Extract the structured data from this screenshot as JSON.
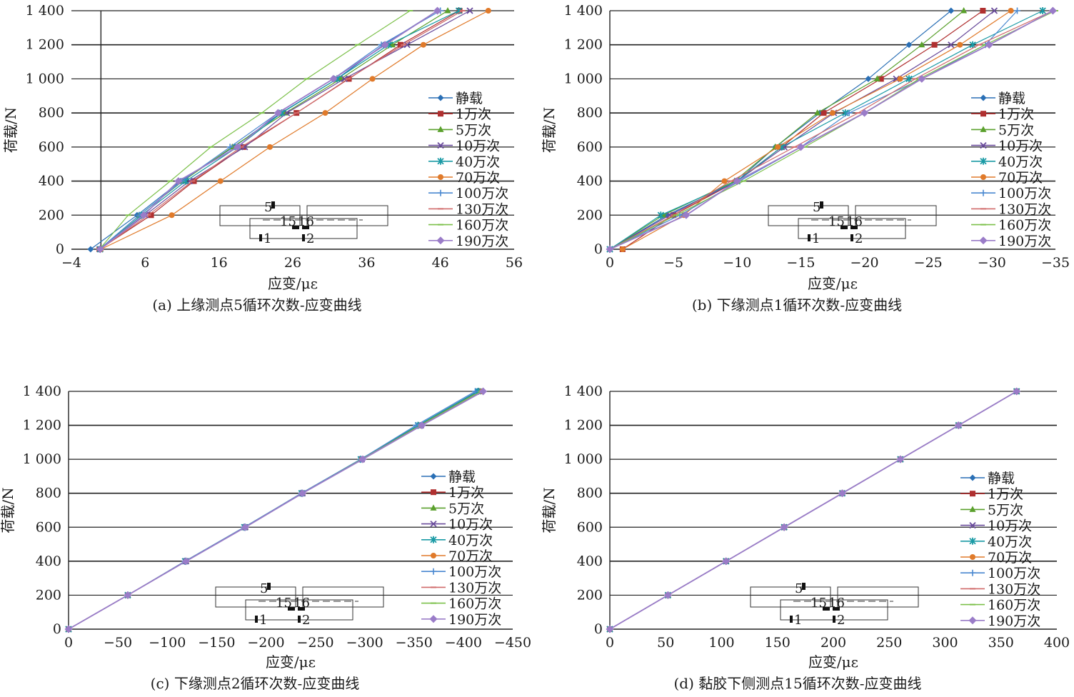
{
  "chart_data": [
    {
      "type": "line",
      "caption": "(a) 上缘测点5循环次数-应变曲线",
      "xlabel": "应变/με",
      "ylabel": "荷载/N",
      "xlim": [
        -4,
        56
      ],
      "ylim": [
        0,
        1400
      ],
      "xticks": [
        -4,
        6,
        16,
        26,
        36,
        46,
        56
      ],
      "xtick_labels": [
        "−4",
        "6",
        "16",
        "26",
        "36",
        "46",
        "56"
      ],
      "yticks": [
        0,
        200,
        400,
        600,
        800,
        1000,
        1200,
        1400
      ],
      "ytick_labels": [
        "0",
        "200",
        "400",
        "600",
        "800",
        "1 000",
        "1 200",
        "1 400"
      ],
      "grid": "horizontal",
      "legend_position": "right",
      "y": [
        0,
        200,
        400,
        600,
        800,
        1000,
        1200,
        1400
      ],
      "series": [
        {
          "name": "静载",
          "x": [
            -1.4,
            4.9,
            10.8,
            18.0,
            24.4,
            32.0,
            38.3,
            45.6
          ]
        },
        {
          "name": "1万次",
          "x": [
            -0.2,
            6.8,
            12.6,
            19.3,
            26.5,
            33.6,
            40.6,
            48.6
          ]
        },
        {
          "name": "5万次",
          "x": [
            -0.1,
            5.2,
            11.1,
            17.8,
            25.0,
            32.5,
            39.5,
            47.0
          ]
        },
        {
          "name": "10万次",
          "x": [
            -0.1,
            6.0,
            12.0,
            19.5,
            25.2,
            33.0,
            41.5,
            50.0
          ]
        },
        {
          "name": "40万次",
          "x": [
            -0.1,
            5.5,
            11.5,
            18.5,
            24.5,
            32.0,
            39.0,
            48.5
          ]
        },
        {
          "name": "70万次",
          "x": [
            0.0,
            9.6,
            16.2,
            22.9,
            30.4,
            36.8,
            43.7,
            52.5
          ]
        },
        {
          "name": "100万次",
          "x": [
            -0.2,
            5.2,
            11.0,
            17.5,
            24.0,
            31.5,
            38.0,
            46.0
          ]
        },
        {
          "name": "130万次",
          "x": [
            -0.1,
            6.4,
            12.4,
            19.0,
            26.5,
            33.5,
            41.0,
            49.0
          ]
        },
        {
          "name": "160万次",
          "x": [
            -0.2,
            3.7,
            9.4,
            14.9,
            21.8,
            27.9,
            34.8,
            41.9
          ]
        },
        {
          "name": "190万次",
          "x": [
            -0.1,
            5.8,
            10.5,
            18.5,
            24.0,
            31.5,
            38.5,
            45.6
          ]
        }
      ]
    },
    {
      "type": "line",
      "caption": "(b) 下缘测点1循环次数-应变曲线",
      "xlabel": "应变/με",
      "ylabel": "荷载/N",
      "xlim": [
        0,
        -35
      ],
      "ylim": [
        0,
        1400
      ],
      "xticks": [
        0,
        -5,
        -10,
        -15,
        -20,
        -25,
        -30,
        -35
      ],
      "xtick_labels": [
        "0",
        "−5",
        "−10",
        "−15",
        "−20",
        "−25",
        "−30",
        "−35"
      ],
      "yticks": [
        0,
        200,
        400,
        600,
        800,
        1000,
        1200,
        1400
      ],
      "ytick_labels": [
        "0",
        "200",
        "400",
        "600",
        "800",
        "1 000",
        "1 200",
        "1 400"
      ],
      "grid": "horizontal",
      "legend_position": "right",
      "y": [
        0,
        200,
        400,
        600,
        800,
        1000,
        1200,
        1400
      ],
      "series": [
        {
          "name": "静载",
          "x": [
            0.0,
            -4.5,
            -10.0,
            -13.0,
            -16.5,
            -20.3,
            -23.5,
            -26.8
          ]
        },
        {
          "name": "1万次",
          "x": [
            -1.0,
            -5.0,
            -10.0,
            -13.5,
            -16.8,
            -21.3,
            -25.5,
            -29.3
          ]
        },
        {
          "name": "5万次",
          "x": [
            0.0,
            -4.2,
            -9.8,
            -13.0,
            -16.3,
            -21.0,
            -24.5,
            -27.8
          ]
        },
        {
          "name": "10万次",
          "x": [
            0.0,
            -4.7,
            -10.0,
            -13.7,
            -17.6,
            -22.5,
            -26.8,
            -30.2
          ]
        },
        {
          "name": "40万次",
          "x": [
            0.0,
            -4.0,
            -10.0,
            -13.5,
            -18.5,
            -23.5,
            -28.5,
            -34.0
          ]
        },
        {
          "name": "70万次",
          "x": [
            -1.0,
            -5.8,
            -9.0,
            -13.2,
            -17.5,
            -22.8,
            -27.5,
            -31.5
          ]
        },
        {
          "name": "100万次",
          "x": [
            0.0,
            -5.5,
            -10.2,
            -15.0,
            -18.8,
            -24.5,
            -29.5,
            -32.0
          ]
        },
        {
          "name": "130万次",
          "x": [
            0.0,
            -5.0,
            -9.5,
            -14.5,
            -19.5,
            -24.0,
            -29.0,
            -34.8
          ]
        },
        {
          "name": "160万次",
          "x": [
            0.0,
            -5.2,
            -10.5,
            -15.3,
            -20.0,
            -24.3,
            -29.5,
            -35.0
          ]
        },
        {
          "name": "190万次",
          "x": [
            0.0,
            -6.0,
            -10.0,
            -15.0,
            -20.0,
            -24.5,
            -29.8,
            -34.8
          ]
        }
      ]
    },
    {
      "type": "line",
      "caption": "(c) 下缘测点2循环次数-应变曲线",
      "xlabel": "应变/με",
      "ylabel": "荷载/N",
      "xlim": [
        0,
        -450
      ],
      "ylim": [
        0,
        1400
      ],
      "xticks": [
        0,
        -50,
        -100,
        -150,
        -200,
        -250,
        -300,
        -350,
        -400,
        -450
      ],
      "xtick_labels": [
        "0",
        "−50",
        "−100",
        "−150",
        "−200",
        "−250",
        "−300",
        "−350",
        "−400",
        "−450"
      ],
      "yticks": [
        0,
        200,
        400,
        600,
        800,
        1000,
        1200,
        1400
      ],
      "ytick_labels": [
        "0",
        "200",
        "400",
        "600",
        "800",
        "1 000",
        "1 200",
        "1 400"
      ],
      "grid": "horizontal",
      "legend_position": "right",
      "y": [
        0,
        200,
        400,
        600,
        800,
        1000,
        1200,
        1400
      ],
      "series": [
        {
          "name": "静载",
          "x": [
            0,
            -60,
            -118,
            -178,
            -236,
            -296,
            -354,
            -414
          ]
        },
        {
          "name": "1万次",
          "x": [
            0,
            -60,
            -119,
            -179,
            -237,
            -297,
            -357,
            -418
          ]
        },
        {
          "name": "5万次",
          "x": [
            0,
            -60,
            -118,
            -178,
            -236,
            -296,
            -355,
            -416
          ]
        },
        {
          "name": "10万次",
          "x": [
            0,
            -60,
            -119,
            -179,
            -237,
            -297,
            -357,
            -418
          ]
        },
        {
          "name": "40万次",
          "x": [
            0,
            -60,
            -118,
            -178,
            -236,
            -296,
            -354,
            -415
          ]
        },
        {
          "name": "70万次",
          "x": [
            0,
            -60,
            -119,
            -179,
            -237,
            -297,
            -357,
            -419
          ]
        },
        {
          "name": "100万次",
          "x": [
            0,
            -60,
            -118,
            -178,
            -236,
            -296,
            -352,
            -412
          ]
        },
        {
          "name": "130万次",
          "x": [
            0,
            -60,
            -119,
            -179,
            -237,
            -298,
            -358,
            -420
          ]
        },
        {
          "name": "160万次",
          "x": [
            0,
            -60,
            -119,
            -179,
            -237,
            -297,
            -357,
            -418
          ]
        },
        {
          "name": "190万次",
          "x": [
            0,
            -60,
            -119,
            -179,
            -237,
            -298,
            -358,
            -420
          ]
        }
      ]
    },
    {
      "type": "line",
      "caption": "(d) 黏胶下侧测点15循环次数-应变曲线",
      "xlabel": "应变/με",
      "ylabel": "荷载/N",
      "xlim": [
        0,
        400
      ],
      "ylim": [
        0,
        1400
      ],
      "xticks": [
        0,
        50,
        100,
        150,
        200,
        250,
        300,
        350,
        400
      ],
      "xtick_labels": [
        "0",
        "50",
        "100",
        "150",
        "200",
        "250",
        "300",
        "350",
        "400"
      ],
      "yticks": [
        0,
        200,
        400,
        600,
        800,
        1000,
        1200,
        1400
      ],
      "ytick_labels": [
        "0",
        "200",
        "400",
        "600",
        "800",
        "1 000",
        "1 200",
        "1 400"
      ],
      "grid": "horizontal",
      "legend_position": "right",
      "y": [
        0,
        200,
        400,
        600,
        800,
        1000,
        1200,
        1400
      ],
      "series": [
        {
          "name": "静载",
          "x": [
            0,
            52,
            104,
            156,
            208,
            260,
            312,
            364
          ]
        },
        {
          "name": "1万次",
          "x": [
            0,
            52,
            104,
            156,
            208,
            260,
            312,
            364
          ]
        },
        {
          "name": "5万次",
          "x": [
            0,
            52,
            104,
            156,
            208,
            260,
            312,
            364
          ]
        },
        {
          "name": "10万次",
          "x": [
            0,
            52,
            104,
            156,
            208,
            260,
            312,
            364
          ]
        },
        {
          "name": "40万次",
          "x": [
            0,
            52,
            104,
            156,
            208,
            260,
            312,
            364
          ]
        },
        {
          "name": "70万次",
          "x": [
            0,
            52,
            104,
            156,
            208,
            260,
            312,
            364
          ]
        },
        {
          "name": "100万次",
          "x": [
            0,
            52,
            104,
            156,
            208,
            260,
            312,
            364
          ]
        },
        {
          "name": "130万次",
          "x": [
            0,
            52,
            104,
            156,
            208,
            260,
            312,
            364
          ]
        },
        {
          "name": "160万次",
          "x": [
            0,
            52,
            104,
            156,
            208,
            260,
            312,
            364
          ]
        },
        {
          "name": "190万次",
          "x": [
            0,
            52,
            104,
            156,
            208,
            260,
            312,
            364
          ]
        }
      ]
    }
  ],
  "series_styles": [
    {
      "color": "#2a6fb5",
      "marker": "diamond"
    },
    {
      "color": "#b03030",
      "marker": "square"
    },
    {
      "color": "#5aa02c",
      "marker": "triangle"
    },
    {
      "color": "#6a4c9c",
      "marker": "x"
    },
    {
      "color": "#1a9aa5",
      "marker": "star"
    },
    {
      "color": "#e07a2a",
      "marker": "circle"
    },
    {
      "color": "#4a88d0",
      "marker": "plus"
    },
    {
      "color": "#d06a6a",
      "marker": "dash"
    },
    {
      "color": "#7cc04a",
      "marker": "dash"
    },
    {
      "color": "#9a7cc8",
      "marker": "diamond-big"
    }
  ],
  "diagram_labels": {
    "top_gauge": "5",
    "bottom_left": "1",
    "bottom_right": "2",
    "middle": "15",
    "middle_right": "16"
  }
}
